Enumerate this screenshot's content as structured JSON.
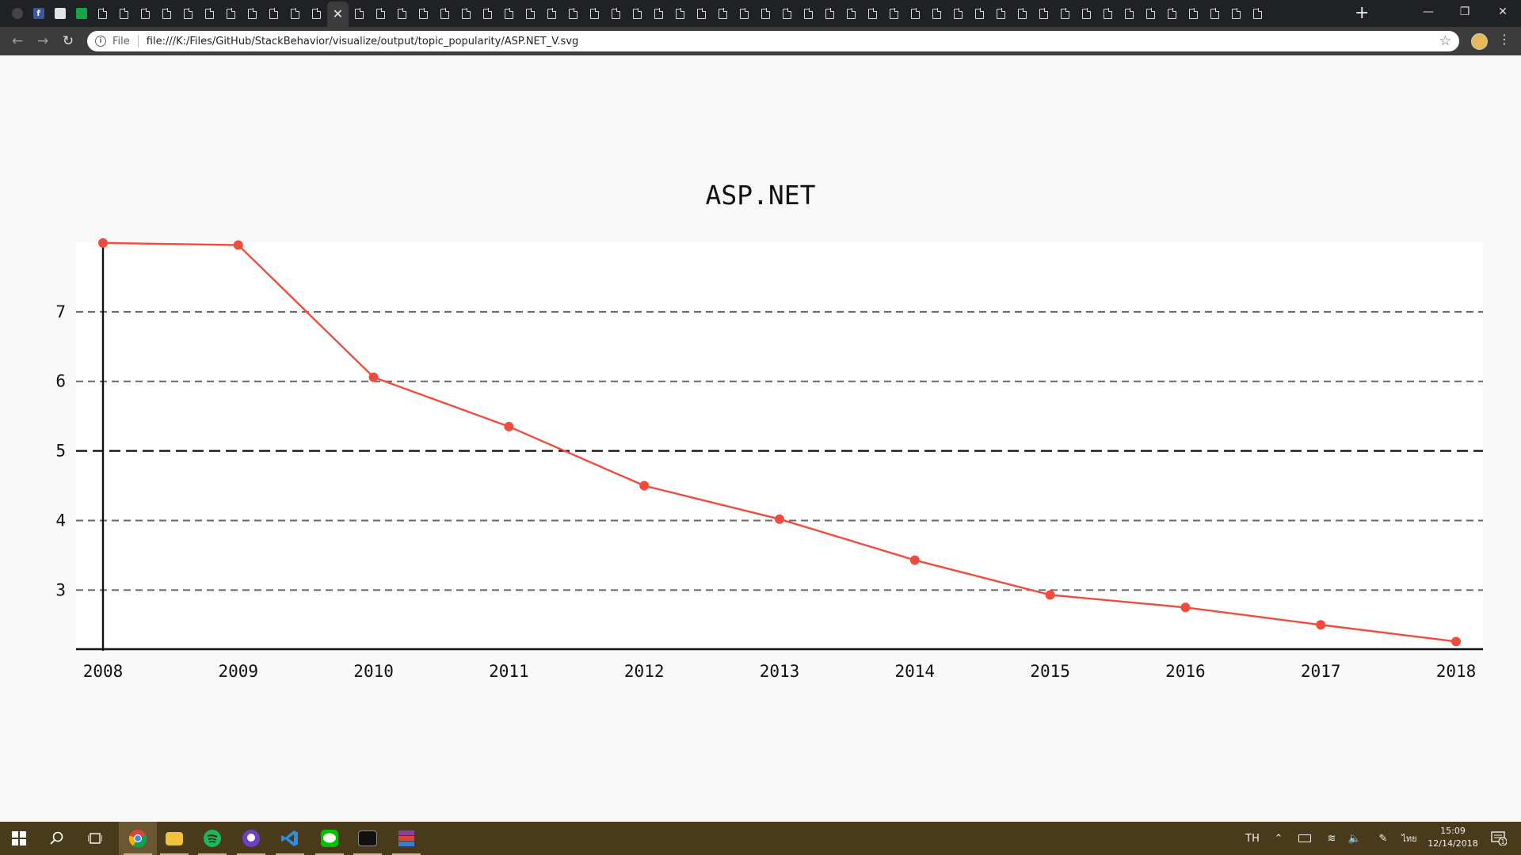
{
  "browser": {
    "url": "file:///K:/Files/GitHub/StackBehavior/visualize/output/topic_popularity/ASP.NET_V.svg",
    "scheme_label": "File",
    "tab_count": 59,
    "active_tab_index": 15
  },
  "taskbar": {
    "language": "TH",
    "time": "15:09",
    "date": "12/14/2018",
    "notification_count": "1"
  },
  "chart_data": {
    "type": "line",
    "title": "ASP.NET",
    "xlabel": "",
    "ylabel": "",
    "x": [
      "2008",
      "2009",
      "2010",
      "2011",
      "2012",
      "2013",
      "2014",
      "2015",
      "2016",
      "2017",
      "2018"
    ],
    "series": [
      {
        "values": [
          7.99,
          7.96,
          6.06,
          5.35,
          4.5,
          4.02,
          3.43,
          2.93,
          2.75,
          2.5,
          2.26
        ]
      }
    ],
    "ylim": [
      2.15,
      8.0
    ],
    "yticks": [
      "3",
      "4",
      "5",
      "6",
      "7"
    ],
    "baseline_value": 5,
    "grid": true,
    "colors": {
      "line": "#f04c3e",
      "grid": "#666666",
      "baseline": "#111111"
    }
  }
}
